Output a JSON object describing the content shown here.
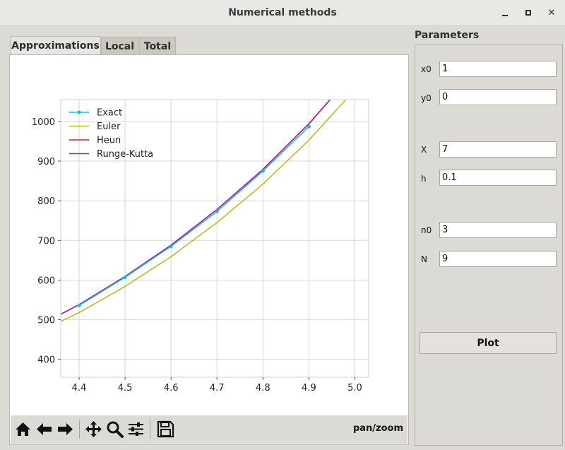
{
  "window": {
    "title": "Numerical methods"
  },
  "tabs": [
    {
      "label": "Approximations",
      "active": true
    },
    {
      "label": "Local",
      "active": false
    },
    {
      "label": "Total",
      "active": false
    }
  ],
  "toolbar": {
    "buttons": [
      "home-icon",
      "back-arrow-icon",
      "forward-arrow-icon",
      "pan-icon",
      "zoom-icon",
      "configure-subplots-icon",
      "save-icon"
    ],
    "mode": "pan/zoom"
  },
  "parameters": {
    "title": "Parameters",
    "fields": [
      {
        "label": "x0",
        "value": "1"
      },
      {
        "label": "y0",
        "value": "0"
      },
      {
        "label": "X",
        "value": "7"
      },
      {
        "label": "h",
        "value": "0.1"
      },
      {
        "label": "n0",
        "value": "3"
      },
      {
        "label": "N",
        "value": "9"
      }
    ],
    "plot_button": "Plot"
  },
  "chart_data": {
    "type": "line",
    "title": "",
    "xlabel": "",
    "ylabel": "",
    "xlim": [
      4.36,
      5.03
    ],
    "ylim": [
      355,
      1055
    ],
    "xticks": [
      "4.4",
      "4.5",
      "4.6",
      "4.7",
      "4.8",
      "4.9",
      "5.0"
    ],
    "yticks": [
      "400",
      "500",
      "600",
      "700",
      "800",
      "900",
      "1000"
    ],
    "grid": true,
    "legend": "top-left",
    "series": [
      {
        "name": "Exact",
        "color": "#17becf",
        "marker": "dot",
        "x": [
          4.4,
          4.5,
          4.6,
          4.7,
          4.8,
          4.9
        ],
        "y": [
          536,
          607,
          685,
          773,
          875,
          987
        ]
      },
      {
        "name": "Euler",
        "color": "#bcbd22",
        "x": [
          4.3,
          4.4,
          4.5,
          4.6,
          4.7,
          4.8,
          4.9,
          5.0
        ],
        "y": [
          463,
          518,
          584,
          659,
          745,
          842,
          953,
          1080
        ]
      },
      {
        "name": "Heun",
        "color": "#d62728",
        "x": [
          4.3,
          4.4,
          4.5,
          4.6,
          4.7,
          4.8,
          4.9,
          5.0
        ],
        "y": [
          478,
          538,
          609,
          688,
          778,
          879,
          994,
          1126
        ]
      },
      {
        "name": "Runge-Kutta",
        "color": "#aa1aa0",
        "x": [
          4.3,
          4.4,
          4.5,
          4.6,
          4.7,
          4.8,
          4.9,
          5.0
        ],
        "y": [
          478,
          538,
          609,
          688,
          778,
          879,
          994,
          1126
        ]
      }
    ]
  }
}
